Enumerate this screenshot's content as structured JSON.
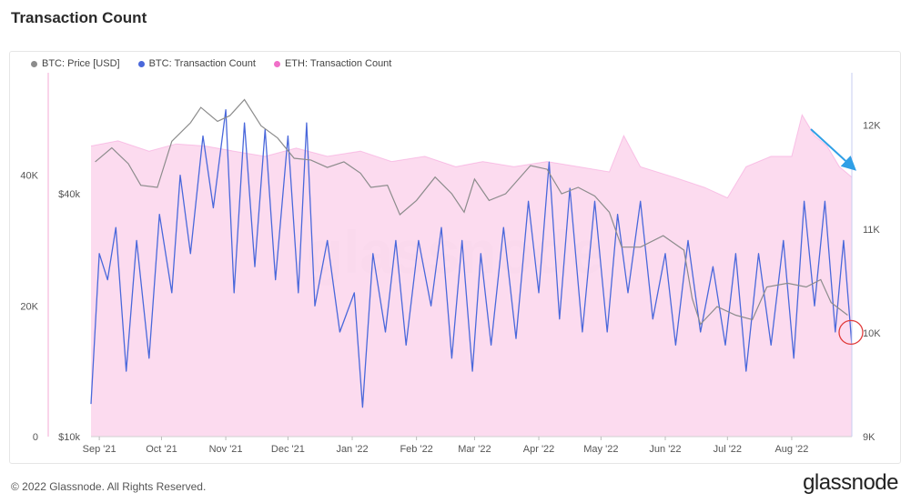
{
  "page": {
    "title": "Transaction Count",
    "copyright": "© 2022 Glassnode. All Rights Reserved.",
    "brand": "glassnode",
    "watermark": "glassnode"
  },
  "colors": {
    "btc_price": "#8c8c8c",
    "btc_tx": "#4a68db",
    "eth_tx": "#f06fc8",
    "eth_fill": "#fbd5ec",
    "annotation_arrow": "#2f9fe6",
    "annotation_circle": "#e03a3a"
  },
  "chart_data": {
    "type": "line",
    "x_ticks": [
      "Sep '21",
      "Oct '21",
      "Nov '21",
      "Dec '21",
      "Jan '22",
      "Feb '22",
      "Mar '22",
      "Apr '22",
      "May '22",
      "Jun '22",
      "Jul '22",
      "Aug '22"
    ],
    "x_range": [
      "2021-08-28",
      "2022-08-30"
    ],
    "legend": [
      "BTC: Price [USD]",
      "BTC: Transaction Count",
      "ETH: Transaction Count"
    ],
    "axes": {
      "left_outer": {
        "series": "BTC: Transaction Count",
        "ticks": [
          "0",
          "20K",
          "40K"
        ],
        "range": [
          0,
          54000
        ]
      },
      "left_inner": {
        "series": "BTC: Price [USD]",
        "ticks": [
          "$10k",
          "$40k"
        ],
        "scale": "log",
        "range": [
          10000,
          75000
        ]
      },
      "right": {
        "series": "ETH: Transaction Count",
        "ticks": [
          "9K",
          "10K",
          "11K",
          "12K"
        ],
        "range": [
          9000,
          12400
        ]
      }
    },
    "series": [
      {
        "name": "BTC: Price [USD]",
        "axis": "left_inner",
        "points": [
          [
            "2021-08-30",
            48000
          ],
          [
            "2021-09-07",
            52000
          ],
          [
            "2021-09-15",
            47500
          ],
          [
            "2021-09-21",
            42000
          ],
          [
            "2021-09-29",
            41500
          ],
          [
            "2021-10-06",
            54000
          ],
          [
            "2021-10-15",
            60000
          ],
          [
            "2021-10-20",
            65500
          ],
          [
            "2021-10-28",
            60500
          ],
          [
            "2021-11-03",
            62500
          ],
          [
            "2021-11-10",
            68500
          ],
          [
            "2021-11-18",
            59000
          ],
          [
            "2021-11-26",
            55000
          ],
          [
            "2021-12-04",
            49000
          ],
          [
            "2021-12-12",
            48500
          ],
          [
            "2021-12-20",
            46500
          ],
          [
            "2021-12-28",
            48000
          ],
          [
            "2022-01-05",
            45000
          ],
          [
            "2022-01-10",
            41500
          ],
          [
            "2022-01-18",
            42000
          ],
          [
            "2022-01-24",
            35500
          ],
          [
            "2022-02-01",
            38500
          ],
          [
            "2022-02-10",
            44000
          ],
          [
            "2022-02-18",
            40000
          ],
          [
            "2022-02-24",
            36000
          ],
          [
            "2022-03-01",
            43500
          ],
          [
            "2022-03-08",
            38500
          ],
          [
            "2022-03-16",
            40000
          ],
          [
            "2022-03-28",
            47000
          ],
          [
            "2022-04-05",
            46000
          ],
          [
            "2022-04-12",
            40000
          ],
          [
            "2022-04-20",
            41500
          ],
          [
            "2022-04-28",
            39500
          ],
          [
            "2022-05-05",
            36000
          ],
          [
            "2022-05-11",
            29500
          ],
          [
            "2022-05-20",
            29500
          ],
          [
            "2022-05-31",
            31500
          ],
          [
            "2022-06-10",
            29000
          ],
          [
            "2022-06-14",
            22000
          ],
          [
            "2022-06-18",
            19000
          ],
          [
            "2022-06-26",
            21000
          ],
          [
            "2022-07-05",
            20000
          ],
          [
            "2022-07-13",
            19500
          ],
          [
            "2022-07-20",
            23500
          ],
          [
            "2022-07-30",
            24000
          ],
          [
            "2022-08-08",
            23500
          ],
          [
            "2022-08-15",
            24500
          ],
          [
            "2022-08-20",
            21500
          ],
          [
            "2022-08-28",
            20000
          ]
        ]
      },
      {
        "name": "BTC: Transaction Count",
        "axis": "left_outer",
        "points": [
          [
            "2021-08-28",
            5000
          ],
          [
            "2021-09-01",
            28000
          ],
          [
            "2021-09-05",
            24000
          ],
          [
            "2021-09-09",
            32000
          ],
          [
            "2021-09-14",
            10000
          ],
          [
            "2021-09-19",
            30000
          ],
          [
            "2021-09-25",
            12000
          ],
          [
            "2021-09-30",
            34000
          ],
          [
            "2021-10-06",
            22000
          ],
          [
            "2021-10-10",
            40000
          ],
          [
            "2021-10-15",
            28000
          ],
          [
            "2021-10-21",
            46000
          ],
          [
            "2021-10-26",
            35000
          ],
          [
            "2021-11-01",
            50000
          ],
          [
            "2021-11-05",
            22000
          ],
          [
            "2021-11-10",
            48000
          ],
          [
            "2021-11-15",
            26000
          ],
          [
            "2021-11-20",
            47000
          ],
          [
            "2021-11-25",
            24000
          ],
          [
            "2021-12-01",
            46000
          ],
          [
            "2021-12-06",
            22000
          ],
          [
            "2021-12-10",
            48000
          ],
          [
            "2021-12-14",
            20000
          ],
          [
            "2021-12-20",
            30000
          ],
          [
            "2021-12-26",
            16000
          ],
          [
            "2022-01-02",
            22000
          ],
          [
            "2022-01-06",
            4500
          ],
          [
            "2022-01-11",
            28000
          ],
          [
            "2022-01-17",
            16000
          ],
          [
            "2022-01-22",
            30000
          ],
          [
            "2022-01-27",
            14000
          ],
          [
            "2022-02-02",
            30000
          ],
          [
            "2022-02-08",
            20000
          ],
          [
            "2022-02-13",
            32000
          ],
          [
            "2022-02-18",
            12000
          ],
          [
            "2022-02-23",
            30000
          ],
          [
            "2022-02-28",
            10000
          ],
          [
            "2022-03-04",
            28000
          ],
          [
            "2022-03-09",
            14000
          ],
          [
            "2022-03-15",
            32000
          ],
          [
            "2022-03-21",
            15000
          ],
          [
            "2022-03-27",
            36000
          ],
          [
            "2022-04-01",
            22000
          ],
          [
            "2022-04-06",
            42000
          ],
          [
            "2022-04-11",
            18000
          ],
          [
            "2022-04-16",
            38000
          ],
          [
            "2022-04-22",
            16000
          ],
          [
            "2022-04-28",
            36000
          ],
          [
            "2022-05-04",
            16000
          ],
          [
            "2022-05-09",
            34000
          ],
          [
            "2022-05-14",
            22000
          ],
          [
            "2022-05-20",
            36000
          ],
          [
            "2022-05-26",
            18000
          ],
          [
            "2022-06-01",
            28000
          ],
          [
            "2022-06-06",
            14000
          ],
          [
            "2022-06-12",
            30000
          ],
          [
            "2022-06-18",
            16000
          ],
          [
            "2022-06-24",
            26000
          ],
          [
            "2022-06-30",
            14000
          ],
          [
            "2022-07-05",
            28000
          ],
          [
            "2022-07-10",
            10000
          ],
          [
            "2022-07-16",
            28000
          ],
          [
            "2022-07-22",
            14000
          ],
          [
            "2022-07-28",
            30000
          ],
          [
            "2022-08-02",
            12000
          ],
          [
            "2022-08-07",
            36000
          ],
          [
            "2022-08-12",
            20000
          ],
          [
            "2022-08-17",
            36000
          ],
          [
            "2022-08-22",
            16000
          ],
          [
            "2022-08-26",
            30000
          ],
          [
            "2022-08-30",
            14000
          ]
        ]
      },
      {
        "name": "ETH: Transaction Count",
        "axis": "right",
        "points": [
          [
            "2021-08-28",
            11800
          ],
          [
            "2021-09-10",
            11850
          ],
          [
            "2021-09-25",
            11750
          ],
          [
            "2021-10-08",
            11820
          ],
          [
            "2021-10-22",
            11800
          ],
          [
            "2021-11-05",
            11750
          ],
          [
            "2021-11-20",
            11700
          ],
          [
            "2021-12-05",
            11780
          ],
          [
            "2021-12-20",
            11700
          ],
          [
            "2022-01-05",
            11750
          ],
          [
            "2022-01-20",
            11650
          ],
          [
            "2022-02-05",
            11700
          ],
          [
            "2022-02-20",
            11600
          ],
          [
            "2022-03-05",
            11650
          ],
          [
            "2022-03-20",
            11600
          ],
          [
            "2022-04-05",
            11650
          ],
          [
            "2022-04-20",
            11600
          ],
          [
            "2022-05-05",
            11550
          ],
          [
            "2022-05-12",
            11900
          ],
          [
            "2022-05-20",
            11600
          ],
          [
            "2022-06-05",
            11500
          ],
          [
            "2022-06-20",
            11400
          ],
          [
            "2022-07-01",
            11300
          ],
          [
            "2022-07-10",
            11600
          ],
          [
            "2022-07-22",
            11700
          ],
          [
            "2022-08-01",
            11700
          ],
          [
            "2022-08-06",
            12100
          ],
          [
            "2022-08-12",
            11900
          ],
          [
            "2022-08-18",
            11800
          ],
          [
            "2022-08-24",
            11600
          ],
          [
            "2022-08-30",
            11500
          ]
        ]
      }
    ],
    "grid": false,
    "legend_placement": "top-left"
  }
}
